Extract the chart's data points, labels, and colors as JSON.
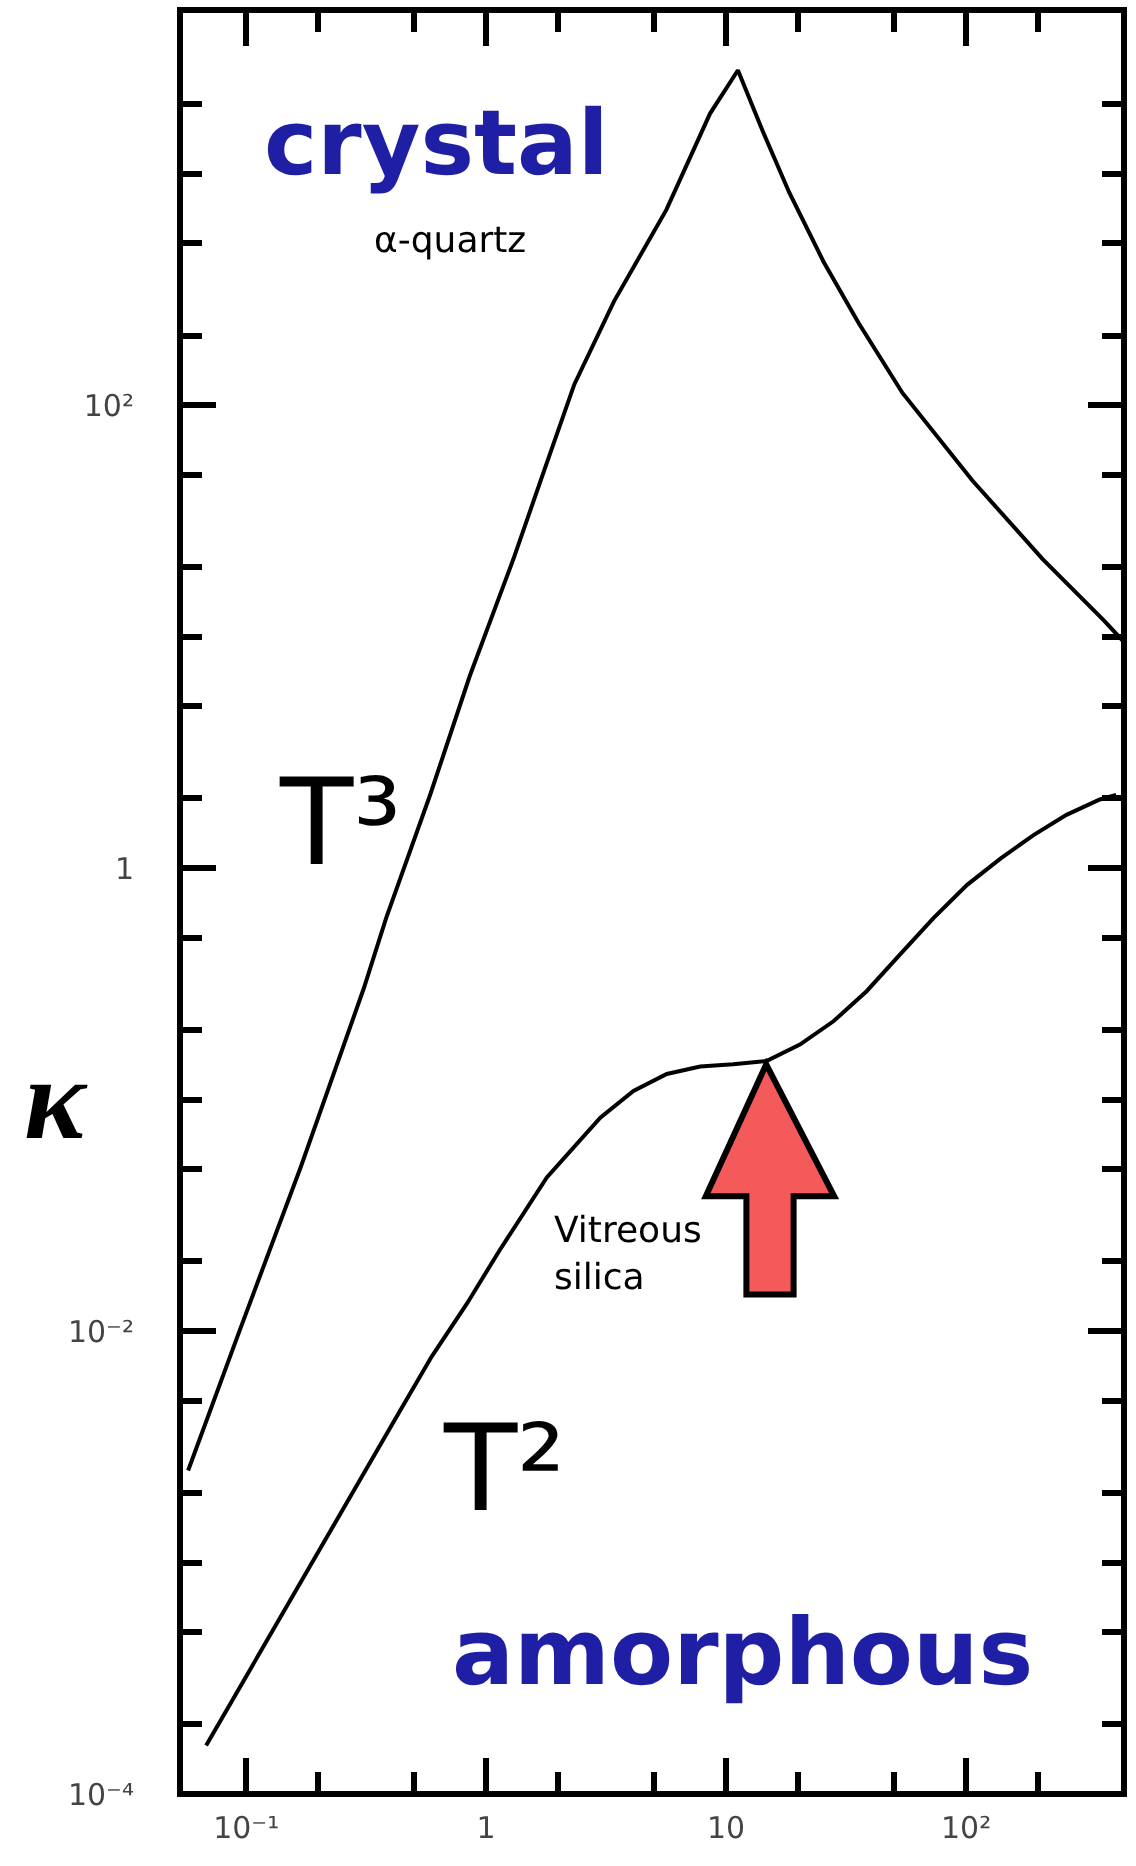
{
  "chart_data": {
    "type": "line",
    "ylabel": "κ",
    "log": "xy",
    "xlim": [
      0.053,
      455
    ],
    "ylim": [
      0.0001,
      5100
    ],
    "xticks": [
      {
        "value": 0.1,
        "label": "10⁻¹"
      },
      {
        "value": 0.2,
        "label": null
      },
      {
        "value": 0.5,
        "label": null
      },
      1,
      {
        "value": 2,
        "label": null
      },
      {
        "value": 5,
        "label": null
      },
      10,
      {
        "value": 20,
        "label": null
      },
      {
        "value": 50,
        "label": null
      },
      {
        "value": 100,
        "label": "10²"
      },
      {
        "value": 200,
        "label": null
      }
    ],
    "yticks": [
      {
        "value": 0.0001,
        "label": "10⁻⁴"
      },
      {
        "value": 0.0002,
        "label": null
      },
      {
        "value": 0.0005,
        "label": null
      },
      {
        "value": 0.001,
        "label": null
      },
      {
        "value": 0.002,
        "label": null
      },
      {
        "value": 0.005,
        "label": null
      },
      {
        "value": 0.01,
        "label": "10⁻²"
      },
      {
        "value": 0.02,
        "label": null
      },
      {
        "value": 0.05,
        "label": null
      },
      {
        "value": 0.1,
        "label": null
      },
      {
        "value": 0.2,
        "label": null
      },
      {
        "value": 0.5,
        "label": null
      },
      1,
      {
        "value": 2,
        "label": null
      },
      {
        "value": 5,
        "label": null
      },
      {
        "value": 10,
        "label": null
      },
      {
        "value": 20,
        "label": null
      },
      {
        "value": 50,
        "label": null
      },
      {
        "value": 100,
        "label": "10²"
      },
      {
        "value": 200,
        "label": null
      },
      {
        "value": 500,
        "label": null
      },
      {
        "value": 1000,
        "label": null
      },
      {
        "value": 2000,
        "label": null
      }
    ],
    "series": [
      {
        "name": "α-quartz",
        "color": "#000000",
        "x": [
          0.0573,
          0.0944,
          0.169,
          0.309,
          0.383,
          0.585,
          0.853,
          1.3,
          1.74,
          2.33,
          3.41,
          5.64,
          8.57,
          11.2,
          14.2,
          18.3,
          25.5,
          35.7,
          54.3,
          106,
          208,
          374,
          450
        ],
        "values": [
          0.0025,
          0.0102,
          0.0513,
          0.302,
          0.608,
          2.08,
          6.73,
          21.7,
          51.8,
          123,
          281,
          700,
          1820,
          2800,
          1530,
          832,
          416,
          226,
          113,
          47.4,
          21.7,
          11.8,
          9.6
        ]
      },
      {
        "name": "Vitreous silica",
        "color": "#000000",
        "x": [
          0.0681,
          0.439,
          0.593,
          0.83,
          1.14,
          1.79,
          2.99,
          4.11,
          5.66,
          7.8,
          10.7,
          14.8,
          20.3,
          28,
          38.5,
          53.1,
          73.1,
          101,
          139,
          191,
          262,
          361,
          422
        ],
        "values": [
          0.000162,
          0.00455,
          0.00776,
          0.0131,
          0.0224,
          0.0461,
          0.0836,
          0.109,
          0.129,
          0.139,
          0.142,
          0.147,
          0.173,
          0.218,
          0.294,
          0.424,
          0.608,
          0.847,
          1.1,
          1.39,
          1.7,
          1.98,
          2.07
        ]
      }
    ],
    "annotations": [
      "crystal",
      "amorphous",
      "T³",
      "T²"
    ]
  }
}
